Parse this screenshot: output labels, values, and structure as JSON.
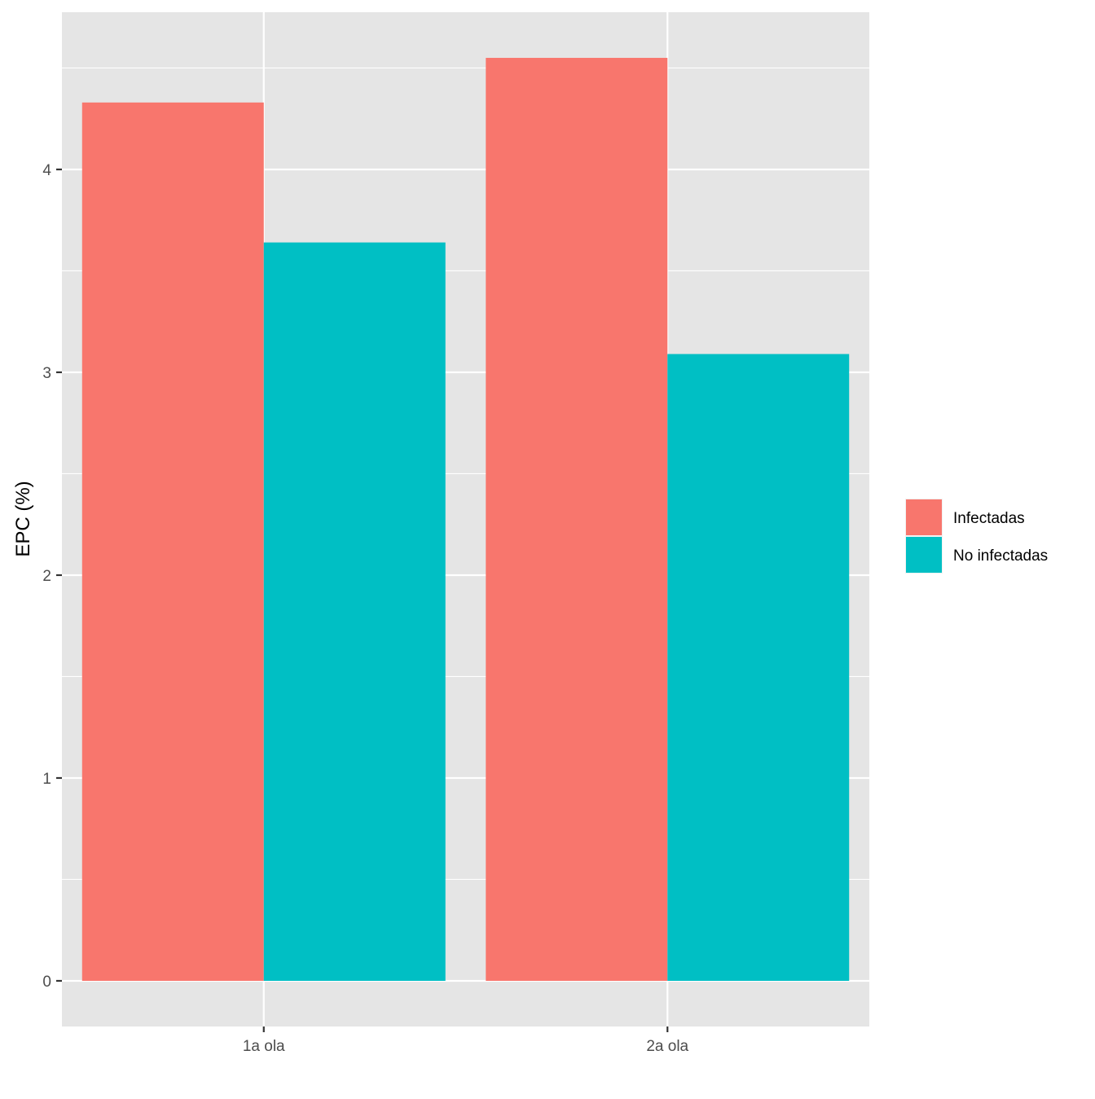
{
  "chart_data": {
    "type": "bar",
    "categories": [
      "1a ola",
      "2a ola"
    ],
    "series": [
      {
        "name": "Infectadas",
        "values": [
          4.33,
          4.55
        ],
        "color": "#F8766D"
      },
      {
        "name": "No infectadas",
        "values": [
          3.64,
          3.09
        ],
        "color": "#00BFC4"
      }
    ],
    "title": "",
    "xlabel": "",
    "ylabel": "EPC (%)",
    "ylim": [
      -0.225,
      4.775
    ],
    "yticks": [
      0,
      1,
      2,
      3,
      4
    ],
    "grid": true,
    "legend_position": "right",
    "panel_color": "#E5E5E5",
    "grid_color": "#FFFFFF"
  }
}
